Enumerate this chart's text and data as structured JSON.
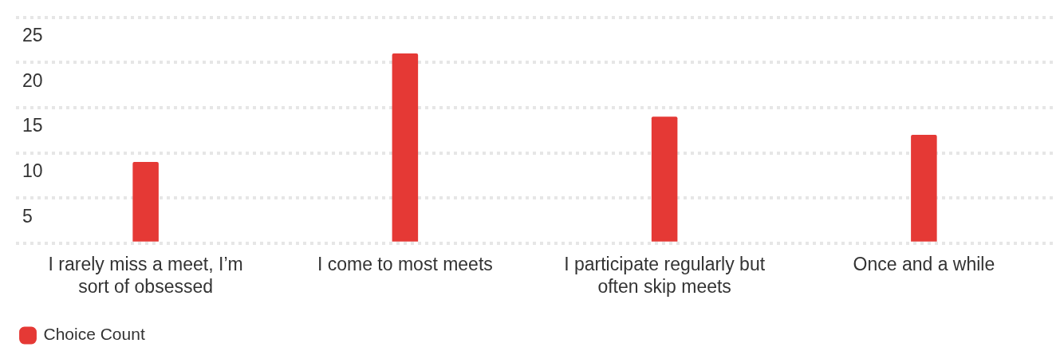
{
  "chart_data": {
    "type": "bar",
    "categories": [
      "I rarely miss a meet, I’m sort of obsessed",
      "I come to most meets",
      "I participate regularly but often skip meets",
      "Once and a while"
    ],
    "series": [
      {
        "name": "Choice Count",
        "color": "#e53935",
        "values": [
          9,
          21,
          14,
          12
        ]
      }
    ],
    "ylim": [
      0,
      25
    ],
    "yticks": [
      {
        "value": 0,
        "label": null
      },
      5,
      10,
      15,
      20,
      25
    ],
    "grid": "y",
    "legend": "bottom left"
  }
}
